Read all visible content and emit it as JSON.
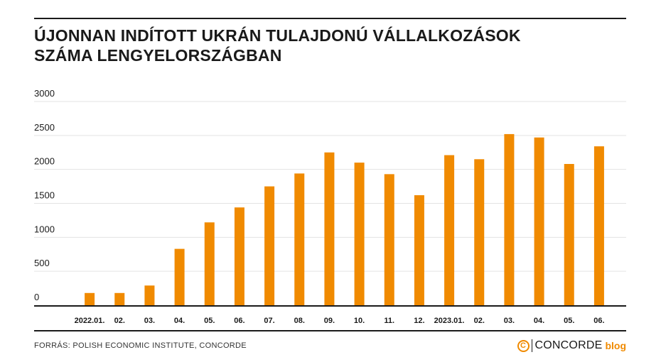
{
  "title_lines": [
    "ÚJONNAN INDÍTOTT UKRÁN TULAJDONÚ VÁLLALKOZÁSOK",
    "SZÁMA LENGYELORSZÁGBAN"
  ],
  "source": "FORRÁS: POLISH ECONOMIC INSTITUTE, CONCORDE",
  "brand": {
    "mark": "C",
    "name": "CONCORDE",
    "suffix": "blog"
  },
  "colors": {
    "bar": "#f08a00",
    "grid": "#e3e3e3",
    "axis": "#1a1a1a",
    "text": "#1a1a1a"
  },
  "chart_data": {
    "type": "bar",
    "title": "ÚJONNAN INDÍTOTT UKRÁN TULAJDONÚ VÁLLALKOZÁSOK SZÁMA LENGYELORSZÁGBAN",
    "xlabel": "",
    "ylabel": "",
    "categories": [
      "2022.01.",
      "02.",
      "03.",
      "04.",
      "05.",
      "06.",
      "07.",
      "08.",
      "09.",
      "10.",
      "11.",
      "12.",
      "2023.01.",
      "02.",
      "03.",
      "04.",
      "05.",
      "06."
    ],
    "values": [
      180,
      180,
      290,
      830,
      1220,
      1440,
      1750,
      1940,
      2250,
      2100,
      1930,
      1620,
      2210,
      2150,
      2520,
      2470,
      2080,
      2340
    ],
    "yticks": [
      0,
      500,
      1000,
      1500,
      2000,
      2500,
      3000
    ],
    "ylim": [
      0,
      3000
    ],
    "grid": true,
    "legend": "none"
  }
}
